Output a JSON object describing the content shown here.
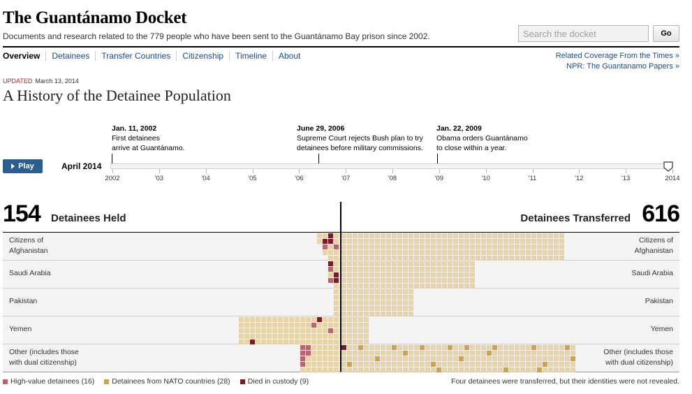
{
  "site": {
    "title": "The Guantánamo Docket",
    "description": "Documents and research related to the 779 people who have been sent to the Guantánamo Bay prison since 2002.",
    "search_placeholder": "Search the docket",
    "go_label": "Go"
  },
  "nav": {
    "items": [
      "Overview",
      "Detainees",
      "Transfer Countries",
      "Citizenship",
      "Timeline",
      "About"
    ],
    "active": "Overview",
    "related": [
      "Related Coverage From the Times »",
      "NPR: The Guantanamo Papers »"
    ]
  },
  "story": {
    "updated_label": "Updated",
    "updated_date": "March 13, 2014",
    "title": "A History of the Detainee Population"
  },
  "timeline": {
    "play_label": "Play",
    "current_date": "April 2014",
    "years": [
      "2002",
      "'03",
      "'04",
      "'05",
      "'06",
      "'07",
      "'08",
      "'09",
      "'10",
      "'11",
      "'12",
      "'13",
      "2014"
    ],
    "events": [
      {
        "date": "Jan. 11, 2002",
        "line1": "First detainees",
        "line2": "arrive at Guantánamo."
      },
      {
        "date": "June 29, 2006",
        "line1": "Supreme Court rejects Bush plan to try",
        "line2": "detainees before military commissions."
      },
      {
        "date": "Jan. 22, 2009",
        "line1": "Obama orders Guantánamo",
        "line2": "to close within a year."
      }
    ],
    "slider_position": "2014-04"
  },
  "totals": {
    "held_count": "154",
    "held_label": "Detainees Held",
    "transferred_count": "616",
    "transferred_label": "Detainees Transferred"
  },
  "rows": [
    {
      "label_line1": "Citizens of",
      "label_line2": "Afghanistan"
    },
    {
      "label_line1": "Saudi Arabia",
      "label_line2": ""
    },
    {
      "label_line1": "Pakistan",
      "label_line2": ""
    },
    {
      "label_line1": "Yemen",
      "label_line2": ""
    },
    {
      "label_line1": "Other (includes those",
      "label_line2": "with dual citizenship)"
    }
  ],
  "legend": {
    "high_value": "High-value detainees (16)",
    "nato": "Detainees from NATO countries (28)",
    "died": "Died in custody (9)"
  },
  "footnote": "Four detainees were transferred, but their identities were not revealed.",
  "colors": {
    "cell": "#e8d3a6",
    "high_value": "#b5666c",
    "nato": "#d1a24a",
    "died": "#7a1c26",
    "accent": "#2c5d8f",
    "updated": "#a0272a"
  }
}
